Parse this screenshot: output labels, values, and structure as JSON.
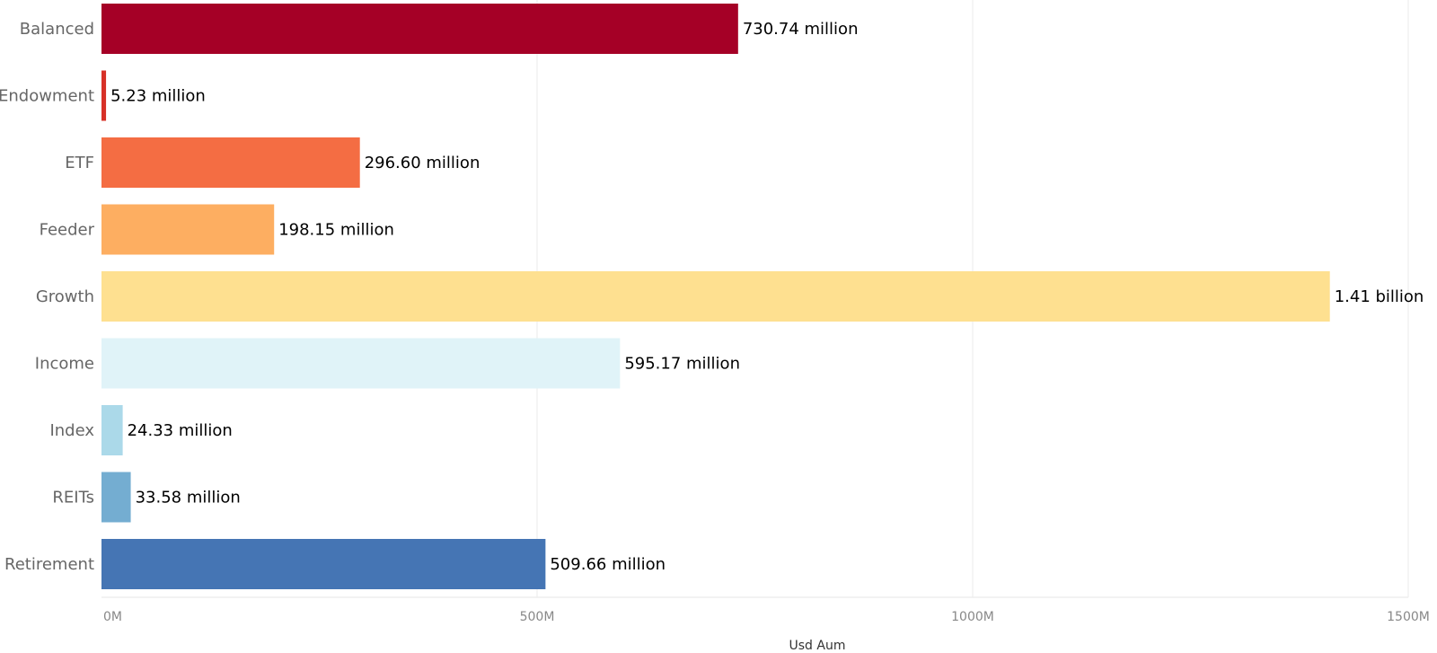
{
  "chart_data": {
    "type": "bar",
    "orientation": "horizontal",
    "categories": [
      "Balanced",
      "Endowment",
      "ETF",
      "Feeder",
      "Growth",
      "Income",
      "Index",
      "REITs",
      "Retirement"
    ],
    "values": [
      730.74,
      5.23,
      296.6,
      198.15,
      1410,
      595.17,
      24.33,
      33.58,
      509.66
    ],
    "value_unit": "million USD",
    "data_labels": [
      "730.74 million",
      "5.23 million",
      "296.60 million",
      "198.15 million",
      "1.41 billion",
      "595.17 million",
      "24.33 million",
      "33.58 million",
      "509.66 million"
    ],
    "colors": [
      "#a50026",
      "#d73027",
      "#f46d43",
      "#fdae61",
      "#fee090",
      "#e0f3f8",
      "#abd9e9",
      "#74add1",
      "#4575b4"
    ],
    "xlabel": "Usd Aum",
    "ylabel": "",
    "xlim": [
      0,
      1500
    ],
    "x_ticks": [
      0,
      500,
      1000,
      1500
    ],
    "x_tick_labels": [
      "0M",
      "500M",
      "1000M",
      "1500M"
    ],
    "grid": true,
    "legend": "none"
  }
}
